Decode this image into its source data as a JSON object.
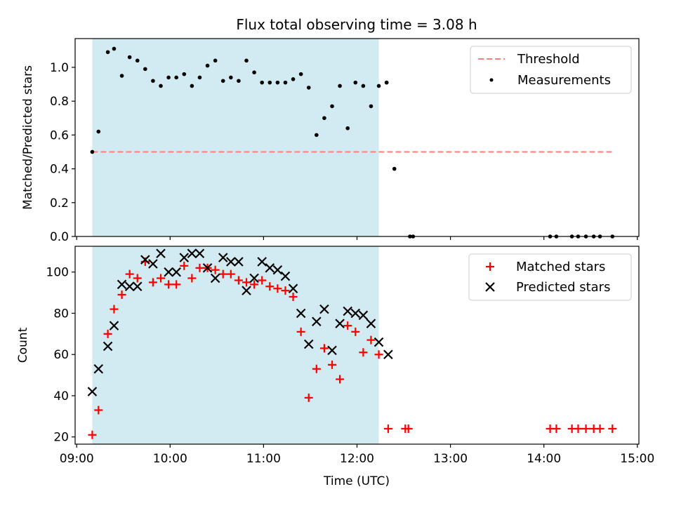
{
  "chart_data": [
    {
      "type": "scatter",
      "title": "Flux total observing time = 3.08 h",
      "xlabel": "",
      "ylabel": "Matched/Predicted stars",
      "ylim": [
        0,
        1.17
      ],
      "yticks": [
        0,
        0.2,
        0.4,
        0.6,
        0.8,
        1.0
      ],
      "ytick_labels": [
        "0.0",
        "0.2",
        "0.4",
        "0.6",
        "0.8",
        "1.0"
      ],
      "xlim": [
        "08:59",
        "15:01"
      ],
      "xticks": [
        "09:00",
        "10:00",
        "11:00",
        "12:00",
        "13:00",
        "14:00",
        "15:00"
      ],
      "shaded_range": [
        "09:10",
        "12:14"
      ],
      "shaded_color": "#add8e6",
      "legend_position": "top-right",
      "legend": [
        {
          "label": "Threshold",
          "marker": "dashed-line",
          "color": "#ff7f7f"
        },
        {
          "label": "Measurements",
          "marker": "dot",
          "color": "#000000"
        }
      ],
      "threshold": {
        "name": "Threshold",
        "value": 0.5,
        "x_start": "09:10",
        "x_end": "14:44"
      },
      "series": [
        {
          "name": "Measurements",
          "color": "#000000",
          "points": [
            [
              "09:10",
              0.5
            ],
            [
              "09:14",
              0.62
            ],
            [
              "09:20",
              1.09
            ],
            [
              "09:24",
              1.11
            ],
            [
              "09:29",
              0.95
            ],
            [
              "09:34",
              1.06
            ],
            [
              "09:39",
              1.04
            ],
            [
              "09:44",
              0.99
            ],
            [
              "09:49",
              0.92
            ],
            [
              "09:54",
              0.89
            ],
            [
              "09:59",
              0.94
            ],
            [
              "10:04",
              0.94
            ],
            [
              "10:09",
              0.96
            ],
            [
              "10:14",
              0.89
            ],
            [
              "10:19",
              0.94
            ],
            [
              "10:24",
              1.01
            ],
            [
              "10:29",
              1.04
            ],
            [
              "10:34",
              0.92
            ],
            [
              "10:39",
              0.94
            ],
            [
              "10:44",
              0.92
            ],
            [
              "10:49",
              1.04
            ],
            [
              "10:54",
              0.97
            ],
            [
              "10:59",
              0.91
            ],
            [
              "11:04",
              0.91
            ],
            [
              "11:09",
              0.91
            ],
            [
              "11:14",
              0.91
            ],
            [
              "11:19",
              0.93
            ],
            [
              "11:24",
              0.96
            ],
            [
              "11:29",
              0.88
            ],
            [
              "11:34",
              0.6
            ],
            [
              "11:39",
              0.7
            ],
            [
              "11:44",
              0.77
            ],
            [
              "11:49",
              0.89
            ],
            [
              "11:54",
              0.64
            ],
            [
              "11:59",
              0.91
            ],
            [
              "12:04",
              0.89
            ],
            [
              "12:09",
              0.77
            ],
            [
              "12:14",
              0.89
            ],
            [
              "12:19",
              0.91
            ],
            [
              "12:19",
              0.91
            ],
            [
              "12:24",
              0.4
            ],
            [
              "12:34",
              0.0
            ],
            [
              "12:36",
              0.0
            ],
            [
              "14:04",
              0.0
            ],
            [
              "14:08",
              0.0
            ],
            [
              "14:18",
              0.0
            ],
            [
              "14:22",
              0.0
            ],
            [
              "14:27",
              0.0
            ],
            [
              "14:32",
              0.0
            ],
            [
              "14:36",
              0.0
            ],
            [
              "14:44",
              0.0
            ]
          ]
        }
      ]
    },
    {
      "type": "scatter",
      "title": "",
      "xlabel": "Time (UTC)",
      "ylabel": "Count",
      "ylim": [
        16.5,
        112.5
      ],
      "yticks": [
        20,
        40,
        60,
        80,
        100
      ],
      "ytick_labels": [
        "20",
        "40",
        "60",
        "80",
        "100"
      ],
      "xlim": [
        "08:59",
        "15:01"
      ],
      "xticks": [
        "09:00",
        "10:00",
        "11:00",
        "12:00",
        "13:00",
        "14:00",
        "15:00"
      ],
      "xtick_labels": [
        "09:00",
        "10:00",
        "11:00",
        "12:00",
        "13:00",
        "14:00",
        "15:00"
      ],
      "shaded_range": [
        "09:10",
        "12:14"
      ],
      "shaded_color": "#add8e6",
      "legend_position": "top-right",
      "legend": [
        {
          "label": "Matched stars",
          "marker": "plus",
          "color": "#ff0000"
        },
        {
          "label": "Predicted stars",
          "marker": "x",
          "color": "#000000"
        }
      ],
      "series": [
        {
          "name": "Matched stars",
          "color": "#ff0000",
          "points": [
            [
              "09:10",
              21
            ],
            [
              "09:14",
              33
            ],
            [
              "09:20",
              70
            ],
            [
              "09:24",
              82
            ],
            [
              "09:29",
              89
            ],
            [
              "09:34",
              99
            ],
            [
              "09:39",
              97
            ],
            [
              "09:44",
              105
            ],
            [
              "09:49",
              95
            ],
            [
              "09:54",
              97
            ],
            [
              "09:59",
              94
            ],
            [
              "10:04",
              94
            ],
            [
              "10:09",
              103
            ],
            [
              "10:14",
              97
            ],
            [
              "10:19",
              102
            ],
            [
              "10:24",
              102
            ],
            [
              "10:29",
              101
            ],
            [
              "10:34",
              99
            ],
            [
              "10:39",
              99
            ],
            [
              "10:44",
              96
            ],
            [
              "10:49",
              95
            ],
            [
              "10:54",
              94
            ],
            [
              "10:59",
              96
            ],
            [
              "11:04",
              93
            ],
            [
              "11:09",
              92
            ],
            [
              "11:14",
              91
            ],
            [
              "11:19",
              88
            ],
            [
              "11:24",
              71
            ],
            [
              "11:29",
              39
            ],
            [
              "11:34",
              53
            ],
            [
              "11:39",
              63
            ],
            [
              "11:44",
              55
            ],
            [
              "11:49",
              48
            ],
            [
              "11:54",
              74
            ],
            [
              "11:59",
              71
            ],
            [
              "12:04",
              61
            ],
            [
              "12:09",
              67
            ],
            [
              "12:14",
              60
            ],
            [
              "12:20",
              24
            ],
            [
              "12:31",
              24
            ],
            [
              "12:33",
              24
            ],
            [
              "14:04",
              24
            ],
            [
              "14:08",
              24
            ],
            [
              "14:18",
              24
            ],
            [
              "14:22",
              24
            ],
            [
              "14:27",
              24
            ],
            [
              "14:32",
              24
            ],
            [
              "14:36",
              24
            ],
            [
              "14:44",
              24
            ]
          ]
        },
        {
          "name": "Predicted stars",
          "color": "#000000",
          "points": [
            [
              "09:10",
              42
            ],
            [
              "09:14",
              53
            ],
            [
              "09:20",
              64
            ],
            [
              "09:24",
              74
            ],
            [
              "09:29",
              94
            ],
            [
              "09:34",
              93
            ],
            [
              "09:39",
              93
            ],
            [
              "09:44",
              106
            ],
            [
              "09:49",
              104
            ],
            [
              "09:54",
              109
            ],
            [
              "09:59",
              100
            ],
            [
              "10:04",
              100
            ],
            [
              "10:09",
              107
            ],
            [
              "10:14",
              109
            ],
            [
              "10:19",
              109
            ],
            [
              "10:24",
              102
            ],
            [
              "10:29",
              97
            ],
            [
              "10:34",
              107
            ],
            [
              "10:39",
              105
            ],
            [
              "10:44",
              105
            ],
            [
              "10:49",
              91
            ],
            [
              "10:54",
              97
            ],
            [
              "10:59",
              105
            ],
            [
              "11:04",
              102
            ],
            [
              "11:09",
              101
            ],
            [
              "11:14",
              98
            ],
            [
              "11:19",
              92
            ],
            [
              "11:24",
              80
            ],
            [
              "11:29",
              65
            ],
            [
              "11:34",
              76
            ],
            [
              "11:39",
              82
            ],
            [
              "11:44",
              62
            ],
            [
              "11:49",
              75
            ],
            [
              "11:54",
              81
            ],
            [
              "11:59",
              80
            ],
            [
              "12:04",
              79
            ],
            [
              "12:09",
              75
            ],
            [
              "12:14",
              66
            ],
            [
              "12:20",
              60
            ]
          ]
        }
      ]
    }
  ]
}
